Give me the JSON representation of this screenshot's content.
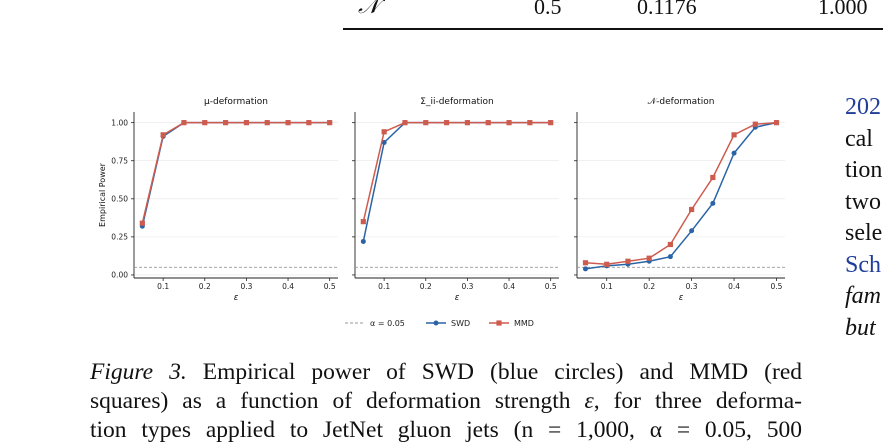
{
  "table_fragment": {
    "cells": [
      "𝒩",
      "0.5",
      "0.1176",
      "1.000"
    ]
  },
  "figure": {
    "legend": {
      "threshold": "α = 0.05",
      "swd": "SWD",
      "mmd": "MMD"
    },
    "colors": {
      "swd": "#2a64a6",
      "mmd": "#cd5c4f",
      "threshold": "#999999"
    }
  },
  "chart_data": [
    {
      "type": "line",
      "title": "μ-deformation",
      "xlabel": "ε",
      "ylabel": "Empirical Power",
      "xlim": [
        0.03,
        0.52
      ],
      "ylim": [
        -0.02,
        1.07
      ],
      "xticks": [
        "0.1",
        "0.2",
        "0.3",
        "0.4",
        "0.5"
      ],
      "yticks": [
        "0.00",
        "0.25",
        "0.50",
        "0.75",
        "1.00"
      ],
      "x": [
        0.05,
        0.1,
        0.15,
        0.2,
        0.25,
        0.3,
        0.35,
        0.4,
        0.45,
        0.5
      ],
      "series": [
        {
          "name": "SWD",
          "values": [
            0.32,
            0.91,
            1.0,
            1.0,
            1.0,
            1.0,
            1.0,
            1.0,
            1.0,
            1.0
          ]
        },
        {
          "name": "MMD",
          "values": [
            0.34,
            0.92,
            1.0,
            1.0,
            1.0,
            1.0,
            1.0,
            1.0,
            1.0,
            1.0
          ]
        }
      ],
      "threshold": 0.05,
      "grid": true
    },
    {
      "type": "line",
      "title": "Σ_ii-deformation",
      "xlabel": "ε",
      "ylabel": "",
      "xlim": [
        0.03,
        0.52
      ],
      "ylim": [
        -0.02,
        1.07
      ],
      "xticks": [
        "0.1",
        "0.2",
        "0.3",
        "0.4",
        "0.5"
      ],
      "x": [
        0.05,
        0.1,
        0.15,
        0.2,
        0.25,
        0.3,
        0.35,
        0.4,
        0.45,
        0.5
      ],
      "series": [
        {
          "name": "SWD",
          "values": [
            0.22,
            0.87,
            1.0,
            1.0,
            1.0,
            1.0,
            1.0,
            1.0,
            1.0,
            1.0
          ]
        },
        {
          "name": "MMD",
          "values": [
            0.35,
            0.94,
            1.0,
            1.0,
            1.0,
            1.0,
            1.0,
            1.0,
            1.0,
            1.0
          ]
        }
      ],
      "threshold": 0.05,
      "grid": true
    },
    {
      "type": "line",
      "title": "𝒩-deformation",
      "xlabel": "ε",
      "ylabel": "",
      "xlim": [
        0.03,
        0.52
      ],
      "ylim": [
        -0.02,
        1.07
      ],
      "xticks": [
        "0.1",
        "0.2",
        "0.3",
        "0.4",
        "0.5"
      ],
      "x": [
        0.05,
        0.1,
        0.15,
        0.2,
        0.25,
        0.3,
        0.35,
        0.4,
        0.45,
        0.5
      ],
      "series": [
        {
          "name": "SWD",
          "values": [
            0.04,
            0.06,
            0.07,
            0.09,
            0.12,
            0.29,
            0.47,
            0.8,
            0.97,
            1.0
          ]
        },
        {
          "name": "MMD",
          "values": [
            0.08,
            0.07,
            0.09,
            0.11,
            0.2,
            0.43,
            0.64,
            0.92,
            0.99,
            1.0
          ]
        }
      ],
      "threshold": 0.05,
      "grid": true
    }
  ],
  "caption": {
    "label": "Figure 3.",
    "line1": "Empirical power of SWD (blue circles) and MMD (red",
    "line2_a": "squares) as a function of deformation strength",
    "line2_eps": "ε",
    "line2_b": ", for three deforma-",
    "line3": "tion types applied to JetNet gluon jets (n = 1,000, α = 0.05, 500"
  },
  "right_column": {
    "lines": [
      "202",
      "cal",
      "tion",
      "two",
      "sele",
      "Sch",
      "fam",
      "but"
    ]
  }
}
